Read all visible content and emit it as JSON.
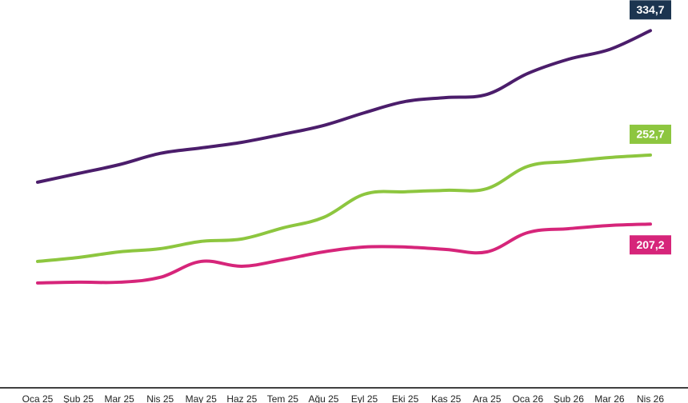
{
  "chart_data": {
    "type": "line",
    "categories": [
      "Oca 25",
      "Şub 25",
      "Mar 25",
      "Nis 25",
      "May 25",
      "Haz 25",
      "Tem 25",
      "Ağu 25",
      "Eyl 25",
      "Eki 25",
      "Kas 25",
      "Ara 25",
      "Oca 26",
      "Şub 26",
      "Mar 26",
      "Nis 26"
    ],
    "ylim": [
      99.3,
      354.9
    ],
    "series": [
      {
        "color": "#4b1d6b",
        "label_color": "#1c3550",
        "values": [
          234.8,
          240.6,
          246.4,
          253.8,
          257.4,
          261.1,
          266.4,
          272.2,
          280.6,
          288.0,
          290.6,
          292.7,
          306.5,
          315.9,
          322.3,
          334.7
        ],
        "value_labels": [
          null,
          null,
          null,
          null,
          null,
          null,
          null,
          null,
          null,
          null,
          null,
          null,
          null,
          null,
          null,
          "334,7"
        ]
      },
      {
        "color": "#8dc63f",
        "label_color": "#8dc63f",
        "values": [
          182.6,
          185.2,
          188.9,
          191.0,
          195.8,
          197.4,
          204.7,
          211.6,
          226.9,
          228.5,
          229.5,
          230.6,
          245.3,
          248.5,
          251.1,
          252.7
        ],
        "value_labels": [
          null,
          null,
          null,
          null,
          null,
          null,
          null,
          null,
          null,
          null,
          null,
          null,
          null,
          null,
          null,
          "252,7"
        ]
      },
      {
        "color": "#d6257a",
        "label_color": "#d6257a",
        "values": [
          168.4,
          168.9,
          168.9,
          172.1,
          182.6,
          179.4,
          183.7,
          188.9,
          192.1,
          192.1,
          190.5,
          188.9,
          201.6,
          204.2,
          206.3,
          207.2
        ],
        "value_labels": [
          null,
          null,
          null,
          null,
          null,
          null,
          null,
          null,
          null,
          null,
          null,
          null,
          null,
          null,
          null,
          "207,2"
        ]
      }
    ]
  }
}
